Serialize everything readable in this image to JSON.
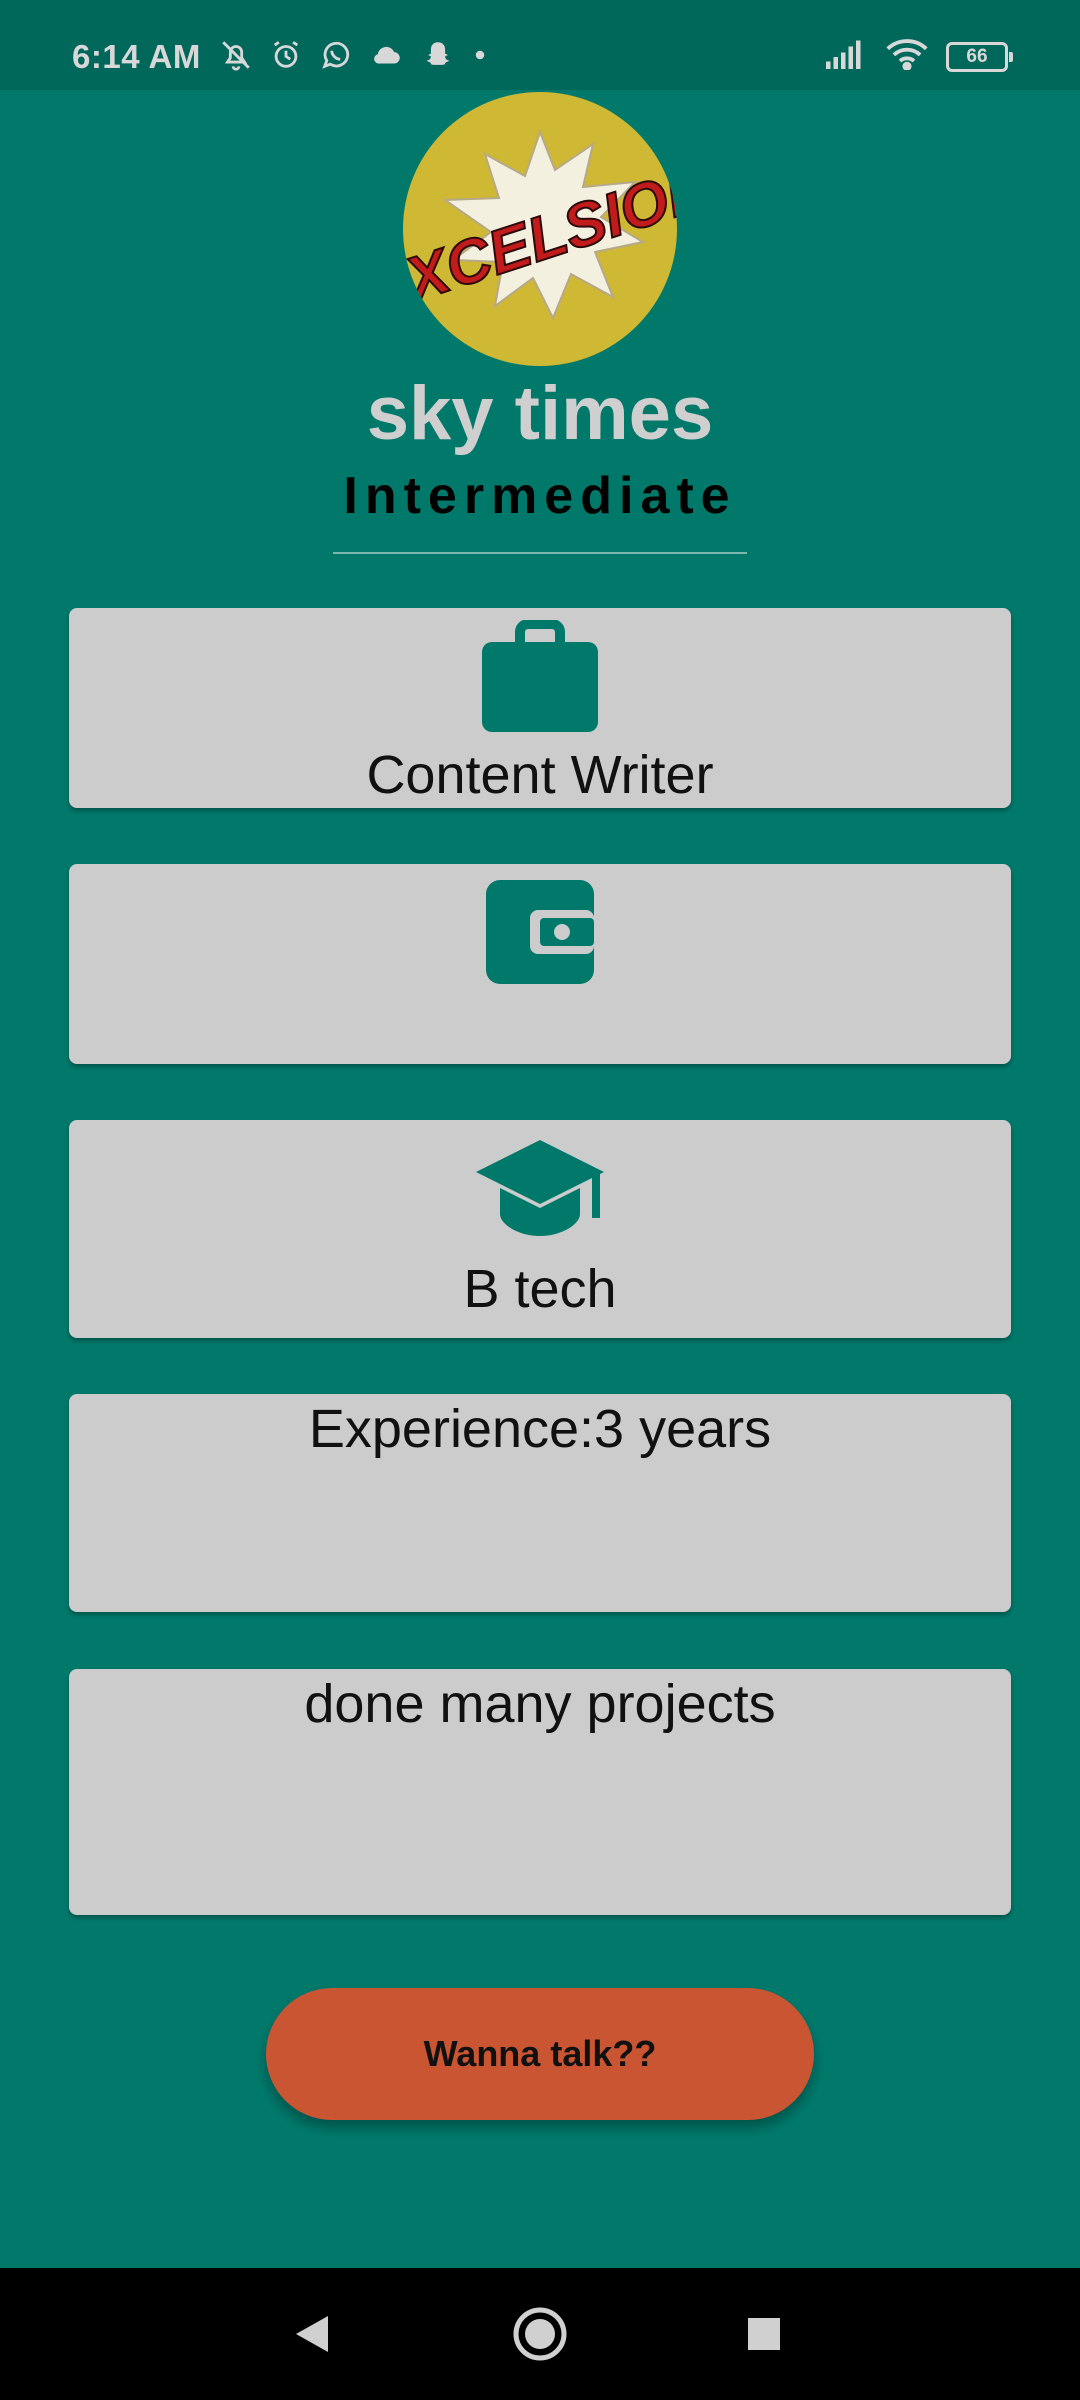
{
  "status_bar": {
    "time": "6:14 AM",
    "battery_level": "66",
    "left_icons": [
      "bell-off-icon",
      "alarm-icon",
      "whatsapp-icon",
      "cloud-icon",
      "snapchat-icon",
      "dot-icon"
    ],
    "right_icons": [
      "signal-icon",
      "wifi-icon",
      "battery-icon"
    ]
  },
  "profile": {
    "logo_text": "EXCELSIOR",
    "name": "sky times",
    "level": "Intermediate"
  },
  "cards": [
    {
      "icon": "briefcase-icon",
      "text": "Content Writer"
    },
    {
      "icon": "wallet-icon",
      "text": ""
    },
    {
      "icon": "graduation-cap-icon",
      "text": "B tech"
    },
    {
      "icon": null,
      "text": "Experience:3 years"
    },
    {
      "icon": null,
      "text": "done many projects"
    }
  ],
  "cta": {
    "label": "Wanna talk??"
  },
  "colors": {
    "background": "#00796b",
    "status_bar": "#00675b",
    "card": "#cccccc",
    "accent_icon": "#00796b",
    "cta": "#c95533"
  },
  "nav_bar": {
    "buttons": [
      "back-icon",
      "home-icon",
      "recents-icon"
    ]
  }
}
